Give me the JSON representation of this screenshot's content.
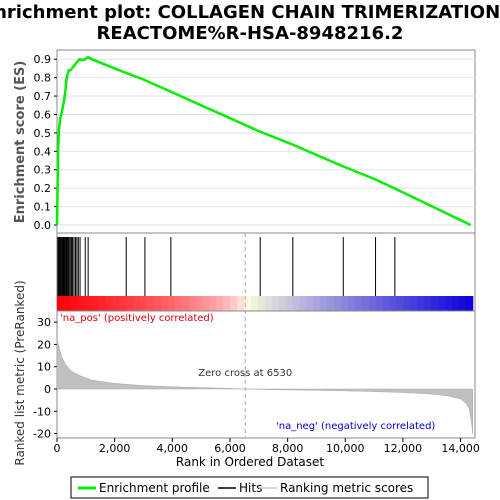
{
  "chart_data": {
    "type": "line",
    "title_line1": "Enrichment plot: COLLAGEN CHAIN TRIMERIZATION%",
    "title_line2": "REACTOME%R-HSA-8948216.2",
    "top_panel": {
      "ylabel": "Enrichment score (ES)",
      "ylim": [
        0,
        0.95
      ],
      "yticks": [
        "0.0",
        "0.1",
        "0.2",
        "0.3",
        "0.4",
        "0.5",
        "0.6",
        "0.7",
        "0.8",
        "0.9"
      ],
      "color": "#00ee00",
      "es_curve": [
        [
          0,
          0
        ],
        [
          20,
          0.22
        ],
        [
          40,
          0.42
        ],
        [
          70,
          0.52
        ],
        [
          110,
          0.58
        ],
        [
          150,
          0.6
        ],
        [
          200,
          0.64
        ],
        [
          250,
          0.68
        ],
        [
          290,
          0.73
        ],
        [
          330,
          0.79
        ],
        [
          370,
          0.82
        ],
        [
          410,
          0.84
        ],
        [
          470,
          0.84
        ],
        [
          520,
          0.85
        ],
        [
          570,
          0.86
        ],
        [
          620,
          0.87
        ],
        [
          670,
          0.88
        ],
        [
          720,
          0.89
        ],
        [
          780,
          0.9
        ],
        [
          900,
          0.895
        ],
        [
          980,
          0.9
        ],
        [
          1050,
          0.91
        ],
        [
          1100,
          0.91
        ],
        [
          1200,
          0.9
        ],
        [
          2400,
          0.825
        ],
        [
          3000,
          0.79
        ],
        [
          4000,
          0.72
        ],
        [
          7000,
          0.51
        ],
        [
          8200,
          0.435
        ],
        [
          9900,
          0.32
        ],
        [
          11000,
          0.25
        ],
        [
          11700,
          0.2
        ],
        [
          14350,
          0.0
        ]
      ]
    },
    "hits": [
      30,
      60,
      90,
      120,
      150,
      180,
      210,
      240,
      270,
      300,
      330,
      360,
      390,
      420,
      460,
      500,
      540,
      590,
      640,
      690,
      740,
      800,
      980,
      1080,
      2400,
      3050,
      3950,
      7050,
      8180,
      9930,
      11050,
      11720
    ],
    "ranked_metric": {
      "ylabel": "Ranked list metric (PreRanked)",
      "ylim": [
        -22,
        35
      ],
      "yticks": [
        "-20",
        "-10",
        "0",
        "10",
        "20",
        "30"
      ],
      "curve": [
        [
          0,
          23
        ],
        [
          50,
          20
        ],
        [
          150,
          15
        ],
        [
          300,
          11
        ],
        [
          500,
          8
        ],
        [
          800,
          6
        ],
        [
          1200,
          4
        ],
        [
          2000,
          2.5
        ],
        [
          3000,
          1.5
        ],
        [
          4000,
          1.0
        ],
        [
          5000,
          0.6
        ],
        [
          6000,
          0.25
        ],
        [
          6530,
          0
        ],
        [
          7500,
          -0.3
        ],
        [
          9000,
          -0.6
        ],
        [
          10500,
          -1.0
        ],
        [
          12000,
          -1.6
        ],
        [
          13000,
          -2.3
        ],
        [
          13600,
          -3.2
        ],
        [
          14000,
          -4.5
        ],
        [
          14200,
          -6.5
        ],
        [
          14300,
          -9
        ],
        [
          14380,
          -15
        ],
        [
          14420,
          -20
        ]
      ],
      "zero_cross_label": "Zero cross at 6530",
      "zero_cross": 6530,
      "pos_label": "'na_pos' (positively correlated)",
      "neg_label": "'na_neg' (negatively correlated)",
      "pos_color": "#dd0000",
      "neg_color": "#0000cc"
    },
    "xaxis": {
      "xlabel": "Rank in Ordered Dataset",
      "xlim": [
        0,
        14500
      ],
      "xticks": [
        "0",
        "2,000",
        "4,000",
        "6,000",
        "8,000",
        "10,000",
        "12,000",
        "14,000"
      ],
      "max_rank": 14420
    },
    "legend": {
      "entries": [
        "Enrichment profile",
        "Hits",
        "Ranking metric scores"
      ],
      "placement": "bottom"
    }
  }
}
